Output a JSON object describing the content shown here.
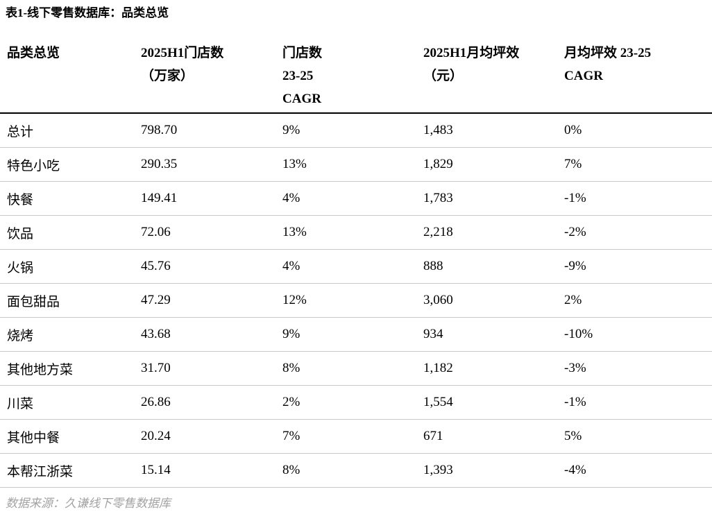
{
  "title": "表1-线下零售数据库：品类总览",
  "table": {
    "columns": [
      {
        "lines": [
          "品类总览"
        ]
      },
      {
        "lines": [
          "2025H1门店数",
          "（万家）"
        ]
      },
      {
        "lines": [
          "门店数",
          "23-25",
          "CAGR"
        ]
      },
      {
        "lines": [
          "2025H1月均坪效",
          "（元）"
        ]
      },
      {
        "lines": [
          "月均坪效 23-25",
          "CAGR"
        ]
      }
    ],
    "rows": [
      [
        "总计",
        "798.70",
        "9%",
        "1,483",
        "0%"
      ],
      [
        "特色小吃",
        "290.35",
        "13%",
        "1,829",
        "7%"
      ],
      [
        "快餐",
        "149.41",
        "4%",
        "1,783",
        "-1%"
      ],
      [
        "饮品",
        "72.06",
        "13%",
        "2,218",
        "-2%"
      ],
      [
        "火锅",
        "45.76",
        "4%",
        "888",
        "-9%"
      ],
      [
        "面包甜品",
        "47.29",
        "12%",
        "3,060",
        "2%"
      ],
      [
        "烧烤",
        "43.68",
        "9%",
        "934",
        "-10%"
      ],
      [
        "其他地方菜",
        "31.70",
        "8%",
        "1,182",
        "-3%"
      ],
      [
        "川菜",
        "26.86",
        "2%",
        "1,554",
        "-1%"
      ],
      [
        "其他中餐",
        "20.24",
        "7%",
        "671",
        "5%"
      ],
      [
        "本帮江浙菜",
        "15.14",
        "8%",
        "1,393",
        "-4%"
      ]
    ]
  },
  "footer": {
    "source": "数据来源：久谦线下零售数据库"
  },
  "colors": {
    "text": "#000000",
    "row_separator": "#c8c8c8",
    "header_border": "#000000",
    "source_text": "#a3a3a3"
  }
}
